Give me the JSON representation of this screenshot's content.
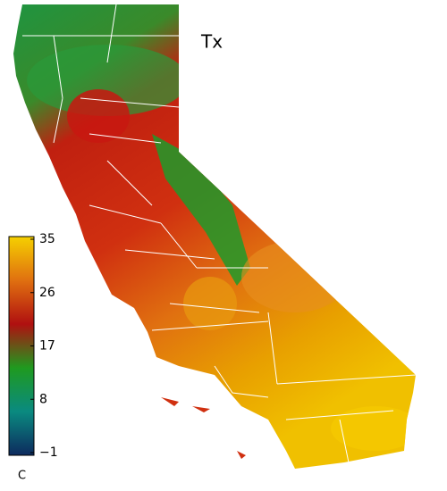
{
  "title": "Tx",
  "colorbar": {
    "range": [
      -1,
      35
    ],
    "ticks": [
      35,
      26,
      17,
      8,
      {
        "value": -1,
        "label": "−1"
      }
    ],
    "colors": [
      "#0d2a5e",
      "#0a8a80",
      "#1f9a1f",
      "#b01010",
      "#e07010",
      "#f5d000"
    ],
    "unit": "C"
  }
}
